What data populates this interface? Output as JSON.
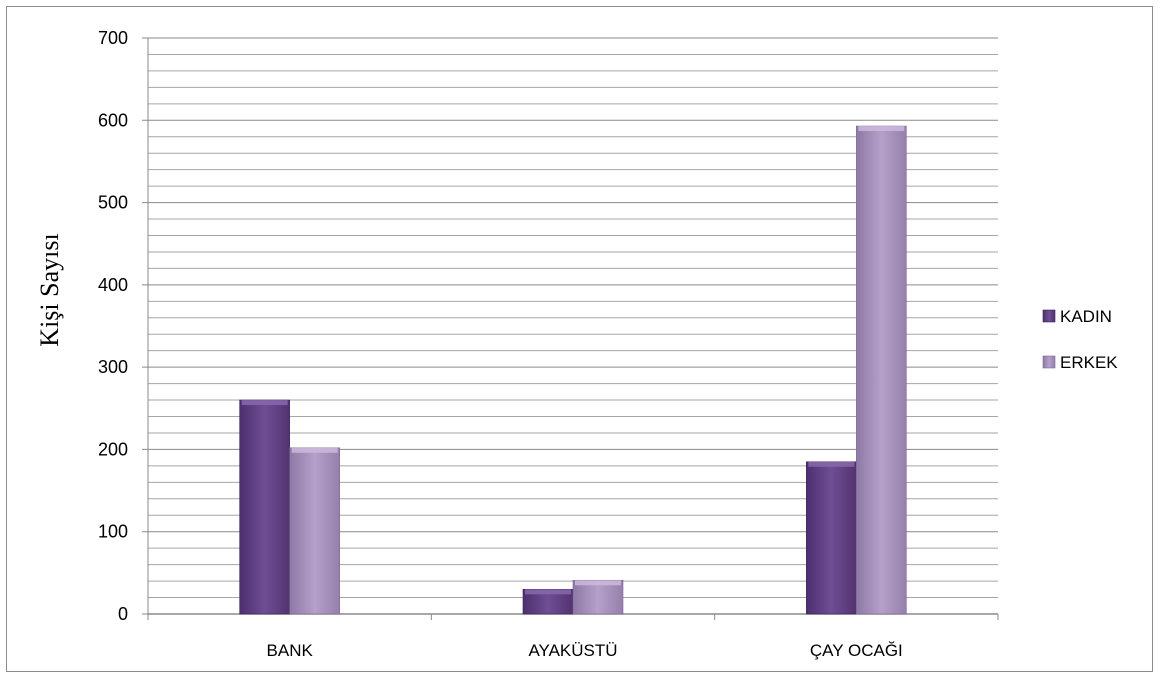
{
  "chart_data": {
    "type": "bar",
    "title": "",
    "xlabel": "",
    "ylabel": "Kişi Sayısı",
    "categories": [
      "BANK",
      "AYAKÜSTÜ",
      "ÇAY OCAĞI"
    ],
    "series": [
      {
        "name": "KADIN",
        "values": [
          260,
          30,
          185
        ],
        "color": "#6b4a8f"
      },
      {
        "name": "ERKEK",
        "values": [
          202,
          41,
          593
        ],
        "color": "#a891bd"
      }
    ],
    "ylim": [
      0,
      700
    ],
    "yticks": [
      0,
      100,
      200,
      300,
      400,
      500,
      600,
      700
    ],
    "minor_gridline_step": 20,
    "grid": true,
    "legend_position": "right"
  }
}
